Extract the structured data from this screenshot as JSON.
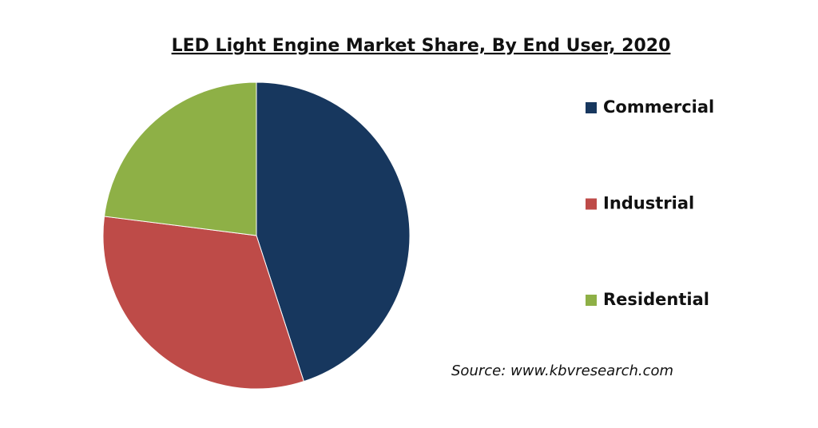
{
  "chart_data": {
    "type": "pie",
    "title": "LED Light Engine Market Share, By End User, 2020",
    "categories": [
      "Commercial",
      "Industrial",
      "Residential"
    ],
    "values": [
      45,
      32,
      23
    ],
    "colors": [
      "#17375e",
      "#be4b48",
      "#8eb046"
    ],
    "legend": "right",
    "source": "Source: www.kbvresearch.com"
  }
}
